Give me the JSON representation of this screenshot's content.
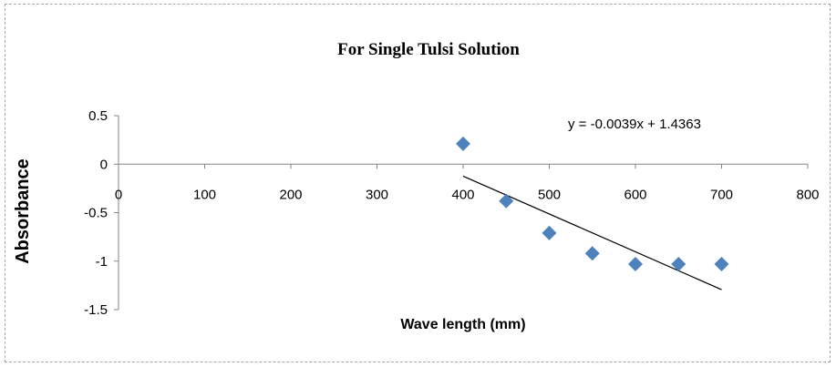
{
  "chart_data": {
    "type": "scatter",
    "title": "For Single Tulsi Solution",
    "xlabel": "Wave length (mm)",
    "ylabel": "Absorbance",
    "xlim": [
      0,
      800
    ],
    "ylim": [
      -1.5,
      0.5
    ],
    "x_ticks": [
      "0",
      "100",
      "200",
      "300",
      "400",
      "500",
      "600",
      "700",
      "800"
    ],
    "y_ticks": [
      "0.5",
      "0",
      "-0.5",
      "-1",
      "-1.5"
    ],
    "grid": false,
    "legend": "none",
    "series": [
      {
        "x": [
          400,
          450,
          500,
          550,
          600,
          650,
          700
        ],
        "y": [
          0.21,
          -0.38,
          -0.71,
          -0.92,
          -1.03,
          -1.03,
          -1.03
        ],
        "color": "#4f81bd",
        "marker": "diamond"
      }
    ],
    "trendline": {
      "equation": "y = -0.0039x + 1.4363",
      "slope": -0.0039,
      "intercept": 1.4363,
      "x_range": [
        400,
        700
      ],
      "color": "#000000"
    }
  }
}
